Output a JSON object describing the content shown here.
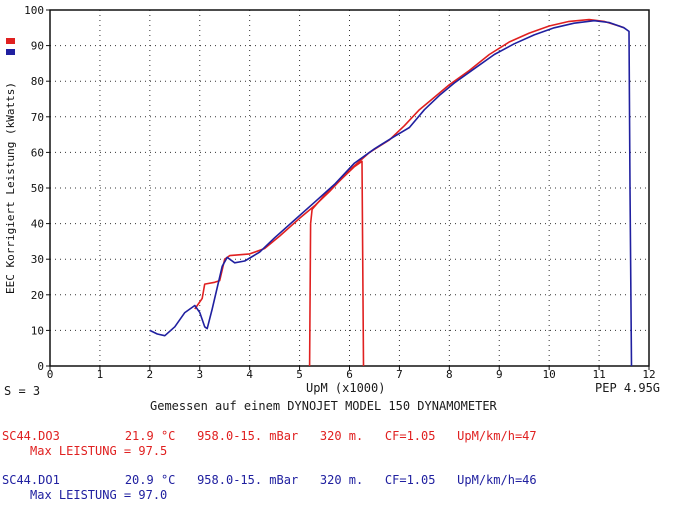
{
  "chart_data": {
    "type": "line",
    "xlabel": "UpM (x1000)",
    "ylabel": "EEC Korrigiert Leistung (kWatts)",
    "xlim": [
      0,
      12
    ],
    "ylim": [
      0,
      100
    ],
    "x_ticks": [
      "0",
      "1",
      "2",
      "3",
      "4",
      "5",
      "6",
      "7",
      "8",
      "9",
      "10",
      "11",
      "12"
    ],
    "y_ticks": [
      "0",
      "10",
      "20",
      "30",
      "40",
      "50",
      "60",
      "70",
      "80",
      "90",
      "100"
    ],
    "grid": true,
    "legend": "top-left",
    "series": [
      {
        "name": "SC44.DO3",
        "color": "#e02020",
        "points": [
          [
            5.2,
            0
          ],
          [
            5.22,
            40
          ],
          [
            5.25,
            44
          ],
          [
            5.5,
            48
          ],
          [
            5.8,
            52
          ],
          [
            6.1,
            56
          ],
          [
            6.25,
            57.5
          ],
          [
            6.28,
            0
          ]
        ],
        "points_main": [
          [
            2.9,
            16
          ],
          [
            3.05,
            19
          ],
          [
            3.1,
            23
          ],
          [
            3.3,
            23.5
          ],
          [
            3.4,
            24
          ],
          [
            3.5,
            30
          ],
          [
            3.6,
            31
          ],
          [
            4.0,
            31.5
          ],
          [
            4.3,
            33
          ],
          [
            4.6,
            36.5
          ],
          [
            5.0,
            41.5
          ],
          [
            5.3,
            45
          ],
          [
            5.6,
            49
          ],
          [
            6.0,
            55
          ],
          [
            6.4,
            60
          ],
          [
            6.8,
            63.5
          ],
          [
            7.1,
            67.5
          ],
          [
            7.4,
            72
          ],
          [
            7.7,
            75.5
          ],
          [
            8.0,
            79
          ],
          [
            8.4,
            83
          ],
          [
            8.8,
            87.5
          ],
          [
            9.2,
            91
          ],
          [
            9.6,
            93.5
          ],
          [
            10.0,
            95.5
          ],
          [
            10.4,
            96.8
          ],
          [
            10.8,
            97.3
          ],
          [
            11.1,
            96.8
          ],
          [
            11.4,
            95.5
          ],
          [
            11.5,
            95
          ]
        ]
      },
      {
        "name": "SC44.DO1",
        "color": "#2020a0",
        "points": [
          [
            2.0,
            10
          ],
          [
            2.15,
            9
          ],
          [
            2.3,
            8.5
          ],
          [
            2.5,
            11
          ],
          [
            2.7,
            15
          ],
          [
            2.9,
            17
          ],
          [
            3.0,
            15
          ],
          [
            3.1,
            11
          ],
          [
            3.15,
            10.5
          ],
          [
            3.25,
            16
          ],
          [
            3.45,
            28
          ],
          [
            3.55,
            30.5
          ],
          [
            3.7,
            29
          ],
          [
            3.9,
            29.5
          ],
          [
            4.2,
            32
          ],
          [
            4.5,
            36
          ],
          [
            4.9,
            41
          ],
          [
            5.3,
            46
          ],
          [
            5.7,
            51
          ],
          [
            6.1,
            57
          ],
          [
            6.5,
            61
          ],
          [
            6.9,
            64.5
          ],
          [
            7.2,
            67
          ],
          [
            7.5,
            72
          ],
          [
            7.8,
            76
          ],
          [
            8.1,
            79.5
          ],
          [
            8.5,
            83.5
          ],
          [
            8.9,
            87.5
          ],
          [
            9.3,
            90.5
          ],
          [
            9.7,
            93
          ],
          [
            10.1,
            95
          ],
          [
            10.5,
            96.3
          ],
          [
            10.9,
            97
          ],
          [
            11.2,
            96.5
          ],
          [
            11.5,
            95
          ],
          [
            11.6,
            94
          ],
          [
            11.62,
            50
          ],
          [
            11.65,
            0
          ]
        ]
      }
    ]
  },
  "labels": {
    "s_value": "S = 3",
    "xlabel": "UpM (x1000)",
    "pep": "PEP 4.95G",
    "subtitle": "Gemessen auf einem DYNOJET MODEL 150 DYNAMOMETER",
    "ylabel": "EEC Korrigiert Leistung (kWatts)",
    "run1_line": "SC44.DO3         21.9 °C   958.0-15. mBar   320 m.   CF=1.05   UpM/km/h=47",
    "run1_max": "Max LEISTUNG = 97.5",
    "run2_line": "SC44.DO1         20.9 °C   958.0-15. mBar   320 m.   CF=1.05   UpM/km/h=46",
    "run2_max": "Max LEISTUNG = 97.0"
  }
}
